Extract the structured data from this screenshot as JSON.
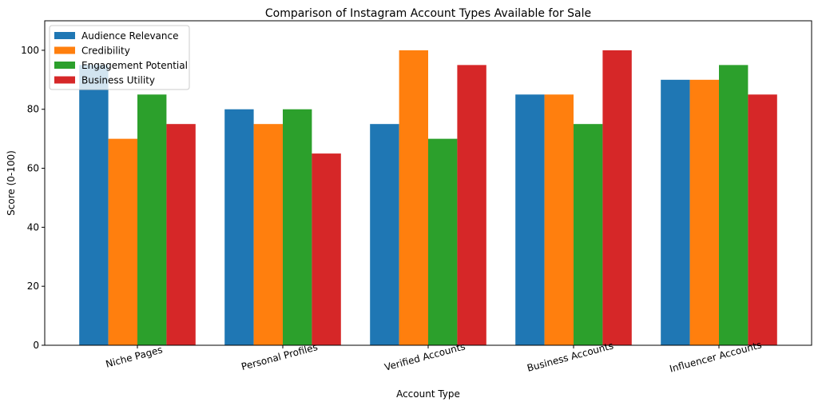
{
  "chart_data": {
    "type": "bar",
    "title": "Comparison of Instagram Account Types Available for Sale",
    "xlabel": "Account Type",
    "ylabel": "Score (0-100)",
    "ylim": [
      0,
      110
    ],
    "yticks": [
      0,
      20,
      40,
      60,
      80,
      100
    ],
    "grid": false,
    "legend_position": "top-left",
    "categories": [
      "Niche Pages",
      "Personal Profiles",
      "Verified Accounts",
      "Business Accounts",
      "Influencer Accounts"
    ],
    "series": [
      {
        "name": "Audience Relevance",
        "color": "#1f77b4",
        "values": [
          95,
          80,
          75,
          85,
          90
        ]
      },
      {
        "name": "Credibility",
        "color": "#ff7f0e",
        "values": [
          70,
          75,
          100,
          85,
          90
        ]
      },
      {
        "name": "Engagement Potential",
        "color": "#2ca02c",
        "values": [
          85,
          80,
          70,
          75,
          95
        ]
      },
      {
        "name": "Business Utility",
        "color": "#d62728",
        "values": [
          75,
          65,
          95,
          100,
          85
        ]
      }
    ]
  }
}
